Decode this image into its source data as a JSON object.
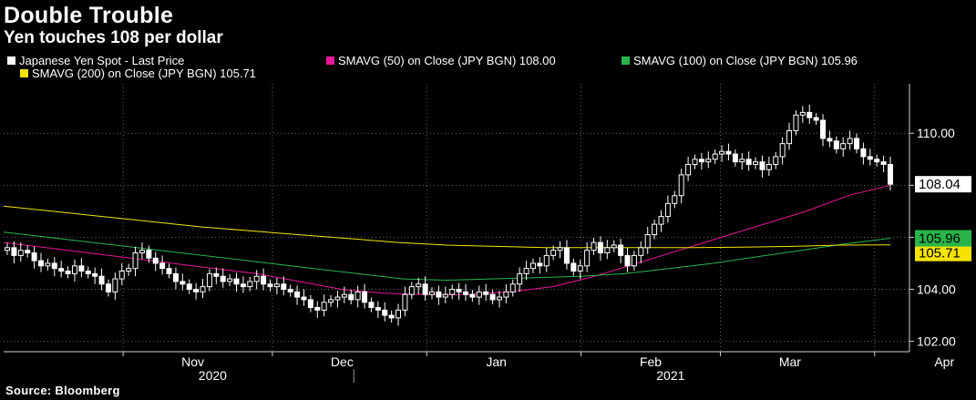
{
  "header": {
    "title": "Double Trouble",
    "subtitle": "Yen touches 108 per dollar"
  },
  "legend": [
    {
      "label": "Japanese Yen Spot - Last Price",
      "color": "#ffffff"
    },
    {
      "label": "SMAVG (50)  on Close (JPY BGN) 108.00",
      "color": "#e8179a"
    },
    {
      "label": "SMAVG (100)  on Close (JPY BGN) 105.96",
      "color": "#29b44a"
    },
    {
      "label": "SMAVG (200)  on Close (JPY BGN) 105.71",
      "color": "#f5e400"
    }
  ],
  "source": "Source: Bloomberg",
  "chart_data": {
    "type": "candlestick",
    "ylim": [
      101.6,
      111.9
    ],
    "y_ticks": [
      {
        "value": 102,
        "label": "102.00"
      },
      {
        "value": 104,
        "label": "104.00"
      },
      {
        "value": 106,
        "label": ""
      },
      {
        "value": 108,
        "label": ""
      },
      {
        "value": 110,
        "label": "110.00"
      }
    ],
    "x_range": [
      "2020-10-08",
      "2021-04-08"
    ],
    "month_ticks": [
      {
        "date": "2020-11-01",
        "label": "Nov"
      },
      {
        "date": "2020-12-01",
        "label": "Dec"
      },
      {
        "date": "2021-01-01",
        "label": "Jan"
      },
      {
        "date": "2021-02-01",
        "label": "Feb"
      },
      {
        "date": "2021-03-01",
        "label": "Mar"
      },
      {
        "date": "2021-04-01",
        "label": "Apr"
      }
    ],
    "year_labels": [
      {
        "label": "2020",
        "center": "2020-11-19"
      },
      {
        "label": "2021",
        "center": "2021-02-19"
      }
    ],
    "year_divider": "2021-01-01",
    "last_value_labels": [
      {
        "text": "108.04",
        "value": 108.04,
        "bg": "#ffffff",
        "fg": "#000000"
      },
      {
        "text": "105.96",
        "value": 105.96,
        "bg": "#29b44a",
        "fg": "#000000"
      },
      {
        "text": "105.71",
        "value": 105.71,
        "bg": "#f5e400",
        "fg": "#000000"
      }
    ],
    "price_series": {
      "name": "Japanese Yen Spot - Last Price",
      "closes": [
        105.6,
        105.3,
        105.5,
        105.4,
        105.1,
        104.9,
        105.0,
        104.8,
        104.7,
        104.6,
        104.9,
        104.7,
        104.6,
        104.5,
        104.2,
        103.9,
        104.4,
        104.7,
        104.8,
        105.4,
        105.5,
        105.2,
        105.0,
        104.8,
        104.6,
        104.3,
        104.2,
        104.0,
        103.9,
        104.1,
        104.6,
        104.5,
        104.3,
        104.4,
        104.2,
        104.1,
        104.3,
        104.5,
        104.2,
        104.1,
        104.2,
        104.0,
        103.9,
        103.7,
        103.6,
        103.3,
        103.2,
        103.5,
        103.6,
        103.7,
        103.8,
        103.6,
        103.9,
        103.5,
        103.3,
        103.2,
        103.0,
        102.9,
        103.2,
        103.8,
        104.1,
        104.2,
        103.8,
        103.9,
        103.7,
        103.8,
        104.0,
        103.9,
        103.8,
        103.7,
        103.9,
        103.8,
        103.6,
        103.7,
        103.9,
        104.2,
        104.6,
        104.8,
        105.0,
        104.9,
        105.3,
        105.5,
        105.6,
        105.0,
        104.7,
        104.9,
        105.5,
        105.8,
        105.4,
        105.6,
        105.7,
        105.3,
        104.9,
        105.3,
        105.6,
        106.1,
        106.5,
        106.8,
        107.3,
        107.6,
        108.4,
        108.8,
        109.0,
        108.9,
        109.0,
        109.2,
        109.3,
        109.2,
        108.9,
        109.0,
        108.8,
        108.9,
        108.6,
        108.8,
        109.1,
        109.6,
        110.1,
        110.7,
        110.8,
        110.6,
        110.5,
        109.8,
        109.7,
        109.4,
        109.6,
        109.8,
        109.4,
        109.1,
        109.0,
        108.9,
        108.8,
        108.04
      ]
    },
    "series": [
      {
        "name": "SMAVG (50)  on Close (JPY BGN)",
        "color": "#e8179a",
        "values": [
          105.8,
          105.6,
          105.4,
          105.2,
          105.0,
          104.8,
          104.6,
          104.3,
          104.0,
          103.85,
          103.8,
          103.8,
          103.9,
          104.1,
          104.5,
          105.0,
          105.5,
          106.0,
          106.5,
          107.0,
          107.6,
          108.0
        ]
      },
      {
        "name": "SMAVG (100)  on Close (JPY BGN)",
        "color": "#29b44a",
        "values": [
          106.2,
          106.0,
          105.8,
          105.6,
          105.4,
          105.2,
          105.0,
          104.8,
          104.6,
          104.4,
          104.35,
          104.4,
          104.45,
          104.5,
          104.6,
          104.8,
          105.0,
          105.25,
          105.5,
          105.75,
          105.96
        ]
      },
      {
        "name": "SMAVG (200)  on Close (JPY BGN)",
        "color": "#f5e400",
        "values": [
          107.2,
          107.0,
          106.8,
          106.6,
          106.4,
          106.25,
          106.1,
          105.95,
          105.8,
          105.7,
          105.65,
          105.6,
          105.6,
          105.6,
          105.6,
          105.62,
          105.65,
          105.7,
          105.71
        ]
      }
    ]
  }
}
